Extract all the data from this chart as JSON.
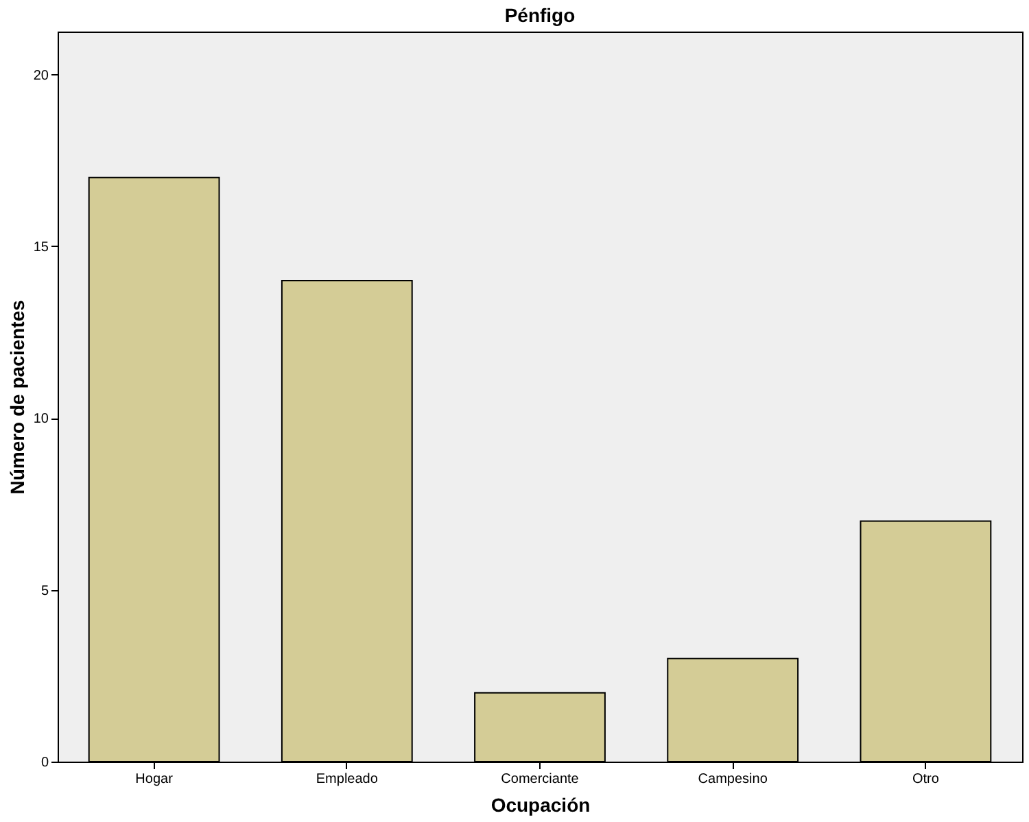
{
  "chart_data": {
    "type": "bar",
    "title": "Pénfigo",
    "xlabel": "Ocupación",
    "ylabel": "Número de pacientes",
    "categories": [
      "Hogar",
      "Empleado",
      "Comerciante",
      "Campesino",
      "Otro"
    ],
    "values": [
      17,
      14,
      2,
      3,
      7
    ],
    "color": "#d4cc96",
    "ylim": [
      0,
      21.25
    ],
    "yticks": [
      0,
      5,
      10,
      15,
      20
    ],
    "grid": false
  }
}
